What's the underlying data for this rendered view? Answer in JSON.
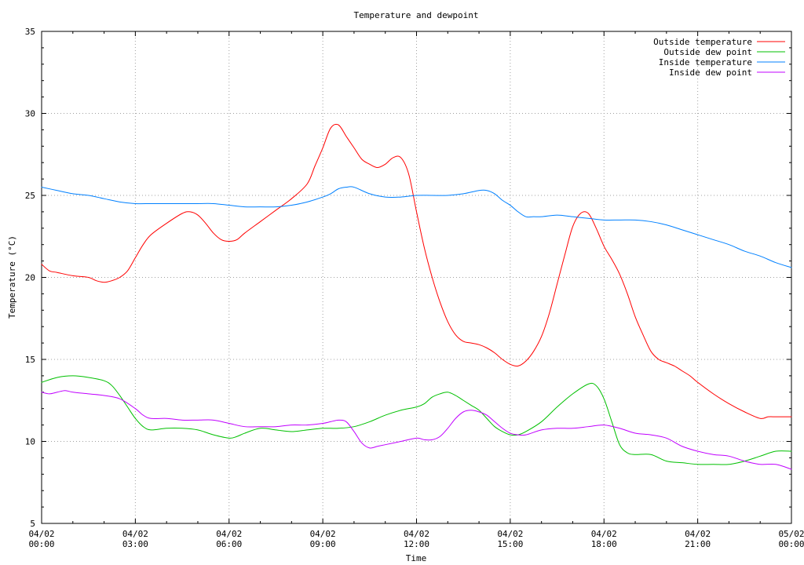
{
  "chart_data": {
    "type": "line",
    "title": "Temperature and dewpoint",
    "xlabel": "Time",
    "ylabel": "Temperature (°C)",
    "xlim": [
      "04/02 00:00",
      "05/02 00:00"
    ],
    "x_hours_domain": [
      0,
      24
    ],
    "ylim": [
      5,
      35
    ],
    "grid": true,
    "legend_position": "top-right",
    "x_ticks": [
      {
        "date": "04/02",
        "time": "00:00"
      },
      {
        "date": "04/02",
        "time": "03:00"
      },
      {
        "date": "04/02",
        "time": "06:00"
      },
      {
        "date": "04/02",
        "time": "09:00"
      },
      {
        "date": "04/02",
        "time": "12:00"
      },
      {
        "date": "04/02",
        "time": "15:00"
      },
      {
        "date": "04/02",
        "time": "18:00"
      },
      {
        "date": "04/02",
        "time": "21:00"
      },
      {
        "date": "05/02",
        "time": "00:00"
      }
    ],
    "y_ticks": [
      5,
      10,
      15,
      20,
      25,
      30,
      35
    ],
    "series": [
      {
        "name": "Outside temperature",
        "color": "#ff0000",
        "x": [
          0,
          0.25,
          0.5,
          1,
          1.5,
          1.75,
          2,
          2.25,
          2.5,
          2.75,
          3,
          3.25,
          3.5,
          4,
          4.5,
          4.75,
          5,
          5.25,
          5.5,
          5.75,
          6,
          6.25,
          6.5,
          7,
          7.5,
          8,
          8.5,
          8.75,
          9,
          9.25,
          9.5,
          9.75,
          10,
          10.25,
          10.5,
          10.75,
          11,
          11.25,
          11.5,
          11.75,
          12,
          12.25,
          12.5,
          12.75,
          13,
          13.25,
          13.5,
          13.75,
          14,
          14.25,
          14.5,
          14.75,
          15,
          15.25,
          15.5,
          15.75,
          16,
          16.25,
          16.5,
          16.75,
          17,
          17.25,
          17.5,
          17.75,
          18,
          18.25,
          18.5,
          18.75,
          19,
          19.25,
          19.5,
          19.75,
          20,
          20.25,
          20.5,
          20.75,
          21,
          21.5,
          22,
          22.5,
          23,
          23.25,
          23.5,
          23.75,
          24
        ],
        "values": [
          20.8,
          20.4,
          20.3,
          20.1,
          20.0,
          19.8,
          19.7,
          19.8,
          20.0,
          20.4,
          21.2,
          22.0,
          22.6,
          23.3,
          23.9,
          24.0,
          23.8,
          23.3,
          22.7,
          22.3,
          22.2,
          22.3,
          22.7,
          23.4,
          24.1,
          24.8,
          25.7,
          26.8,
          27.9,
          29.1,
          29.3,
          28.6,
          27.9,
          27.2,
          26.9,
          26.7,
          26.9,
          27.3,
          27.3,
          26.3,
          24.0,
          21.8,
          20.0,
          18.5,
          17.3,
          16.5,
          16.1,
          16.0,
          15.9,
          15.7,
          15.4,
          15.0,
          14.7,
          14.6,
          14.9,
          15.5,
          16.4,
          17.8,
          19.6,
          21.4,
          23.1,
          23.9,
          23.9,
          23.0,
          21.9,
          21.1,
          20.2,
          19.0,
          17.6,
          16.5,
          15.5,
          15.0,
          14.8,
          14.6,
          14.3,
          14.0,
          13.6,
          12.9,
          12.3,
          11.8,
          11.4,
          11.5,
          11.5,
          11.5,
          11.5
        ],
        "x_trim_end": 23.9
      },
      {
        "name": "Outside dew point",
        "color": "#00c000",
        "x": [
          0,
          0.5,
          1,
          1.5,
          2,
          2.25,
          2.5,
          2.75,
          3,
          3.25,
          3.5,
          4,
          4.5,
          5,
          5.5,
          6,
          6.25,
          6.5,
          7,
          7.5,
          8,
          8.5,
          9,
          9.5,
          10,
          10.5,
          11,
          11.5,
          12,
          12.25,
          12.5,
          12.75,
          13,
          13.25,
          13.5,
          13.75,
          14,
          14.25,
          14.5,
          14.75,
          15,
          15.25,
          15.5,
          16,
          16.5,
          17,
          17.5,
          17.75,
          18,
          18.25,
          18.5,
          18.75,
          19,
          19.5,
          20,
          20.5,
          21,
          21.5,
          22,
          22.5,
          23,
          23.5,
          24
        ],
        "values": [
          13.6,
          13.9,
          14.0,
          13.9,
          13.7,
          13.4,
          12.8,
          12.1,
          11.4,
          10.9,
          10.7,
          10.8,
          10.8,
          10.7,
          10.4,
          10.2,
          10.3,
          10.5,
          10.8,
          10.7,
          10.6,
          10.7,
          10.8,
          10.8,
          10.9,
          11.2,
          11.6,
          11.9,
          12.1,
          12.3,
          12.7,
          12.9,
          13.0,
          12.8,
          12.5,
          12.2,
          11.9,
          11.4,
          10.9,
          10.6,
          10.4,
          10.4,
          10.6,
          11.2,
          12.1,
          12.9,
          13.5,
          13.4,
          12.6,
          11.2,
          9.8,
          9.3,
          9.2,
          9.2,
          8.8,
          8.7,
          8.6,
          8.6,
          8.6,
          8.8,
          9.1,
          9.4,
          9.4
        ]
      },
      {
        "name": "Inside temperature",
        "color": "#0080ff",
        "x": [
          0,
          0.5,
          1,
          1.5,
          2,
          2.5,
          3,
          3.5,
          4,
          4.5,
          5,
          5.5,
          6,
          6.5,
          7,
          7.5,
          8,
          8.5,
          9,
          9.25,
          9.5,
          9.75,
          10,
          10.5,
          11,
          11.5,
          12,
          12.5,
          13,
          13.5,
          14,
          14.25,
          14.5,
          14.75,
          15,
          15.25,
          15.5,
          15.75,
          16,
          16.5,
          17,
          17.5,
          18,
          18.5,
          19,
          19.5,
          20,
          20.5,
          21,
          21.5,
          22,
          22.5,
          23,
          23.5,
          24
        ],
        "values": [
          25.5,
          25.3,
          25.1,
          25.0,
          24.8,
          24.6,
          24.5,
          24.5,
          24.5,
          24.5,
          24.5,
          24.5,
          24.4,
          24.3,
          24.3,
          24.3,
          24.4,
          24.6,
          24.9,
          25.1,
          25.4,
          25.5,
          25.5,
          25.1,
          24.9,
          24.9,
          25.0,
          25.0,
          25.0,
          25.1,
          25.3,
          25.3,
          25.1,
          24.7,
          24.4,
          24.0,
          23.7,
          23.7,
          23.7,
          23.8,
          23.7,
          23.6,
          23.5,
          23.5,
          23.5,
          23.4,
          23.2,
          22.9,
          22.6,
          22.3,
          22.0,
          21.6,
          21.3,
          20.9,
          20.6
        ]
      },
      {
        "name": "Inside dew point",
        "color": "#c000ff",
        "x": [
          0,
          0.25,
          0.5,
          0.75,
          1,
          1.5,
          2,
          2.5,
          3,
          3.25,
          3.5,
          4,
          4.5,
          5,
          5.5,
          6,
          6.5,
          7,
          7.5,
          8,
          8.5,
          9,
          9.25,
          9.5,
          9.75,
          10,
          10.25,
          10.5,
          10.75,
          11,
          11.5,
          12,
          12.25,
          12.5,
          12.75,
          13,
          13.25,
          13.5,
          13.75,
          14,
          14.25,
          14.5,
          14.75,
          15,
          15.25,
          15.5,
          16,
          16.5,
          17,
          17.5,
          18,
          18.5,
          19,
          19.5,
          20,
          20.5,
          21,
          21.5,
          22,
          22.5,
          23,
          23.5,
          24
        ],
        "values": [
          13.0,
          12.9,
          13.0,
          13.1,
          13.0,
          12.9,
          12.8,
          12.6,
          12.0,
          11.6,
          11.4,
          11.4,
          11.3,
          11.3,
          11.3,
          11.1,
          10.9,
          10.9,
          10.9,
          11.0,
          11.0,
          11.1,
          11.2,
          11.3,
          11.2,
          10.6,
          9.9,
          9.6,
          9.7,
          9.8,
          10.0,
          10.2,
          10.1,
          10.1,
          10.3,
          10.8,
          11.4,
          11.8,
          11.9,
          11.8,
          11.6,
          11.2,
          10.8,
          10.5,
          10.4,
          10.4,
          10.7,
          10.8,
          10.8,
          10.9,
          11.0,
          10.8,
          10.5,
          10.4,
          10.2,
          9.7,
          9.4,
          9.2,
          9.1,
          8.8,
          8.6,
          8.6,
          8.3
        ]
      }
    ]
  }
}
